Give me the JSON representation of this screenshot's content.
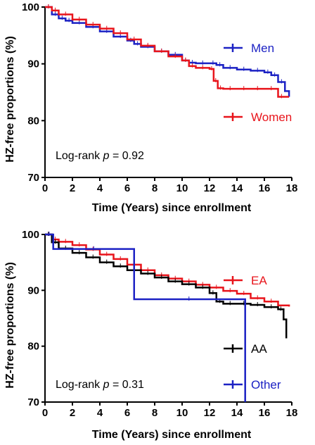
{
  "colors": {
    "red": "#e8141b",
    "blue": "#1c22c4",
    "black": "#000000"
  },
  "chart_data": [
    {
      "type": "line",
      "subtype": "kaplan-meier step",
      "ylabel": "HZ-free proportions (%)",
      "xlabel": "Time (Years) since enrollment",
      "xlim": [
        0,
        18
      ],
      "ylim": [
        70,
        100
      ],
      "xticks": [
        0,
        2,
        4,
        6,
        8,
        10,
        12,
        14,
        16,
        18
      ],
      "yticks": [
        70,
        80,
        90,
        100
      ],
      "annotation": {
        "prefix": "Log-rank ",
        "p": "p",
        "suffix": " = 0.92"
      },
      "legend_placement": "right",
      "series": [
        {
          "name": "Men",
          "color": "#1c22c4",
          "x": [
            0,
            0.5,
            1,
            1.5,
            2,
            3,
            4,
            5,
            6,
            6.5,
            7,
            8,
            9,
            10,
            10.5,
            11,
            12,
            12.5,
            13,
            14,
            15,
            16,
            16.5,
            17,
            17.5,
            17.8
          ],
          "y": [
            100,
            98.7,
            98,
            97.6,
            97.2,
            96.5,
            95.7,
            94.8,
            94.1,
            93.5,
            93,
            92.2,
            91.6,
            90.6,
            90.2,
            90.1,
            90.1,
            89.8,
            89.3,
            89,
            88.8,
            88.5,
            88,
            86.8,
            85.2,
            84.2
          ]
        },
        {
          "name": "Women",
          "color": "#e8141b",
          "x": [
            0,
            0.5,
            1,
            2,
            3,
            4,
            5,
            6,
            7,
            8,
            9,
            10,
            10.5,
            11,
            12,
            12.3,
            12.6,
            13,
            14,
            15,
            16,
            17,
            17.5,
            17.8
          ],
          "y": [
            100,
            99.4,
            98.7,
            97.8,
            96.9,
            96.2,
            95.4,
            94.3,
            93.2,
            92.2,
            91.3,
            90.6,
            89.6,
            89.3,
            89.1,
            87,
            85.7,
            85.6,
            85.6,
            85.6,
            85.6,
            84.2,
            84.2,
            84.2
          ]
        }
      ]
    },
    {
      "type": "line",
      "subtype": "kaplan-meier step",
      "ylabel": "HZ-free proportions (%)",
      "xlabel": "Time (Years) since enrollment",
      "xlim": [
        0,
        18
      ],
      "ylim": [
        70,
        100
      ],
      "xticks": [
        0,
        2,
        4,
        6,
        8,
        10,
        12,
        14,
        16,
        18
      ],
      "yticks": [
        70,
        80,
        90,
        100
      ],
      "annotation": {
        "prefix": "Log-rank ",
        "p": "p",
        "suffix": " = 0.31"
      },
      "legend_placement": "right",
      "series": [
        {
          "name": "EA",
          "color": "#e8141b",
          "x": [
            0,
            0.5,
            1,
            2,
            3,
            4,
            5,
            6,
            7,
            8,
            9,
            10,
            11,
            12,
            13,
            14,
            15,
            16,
            17,
            17.8
          ],
          "y": [
            100,
            99.1,
            98.7,
            98.1,
            97.3,
            96.4,
            95.6,
            94.6,
            93.6,
            92.7,
            92.1,
            91.6,
            91,
            90.5,
            89.9,
            89.4,
            88.6,
            88,
            87.3,
            87.1
          ]
        },
        {
          "name": "AA",
          "color": "#000000",
          "x": [
            0,
            0.5,
            1,
            2,
            3,
            4,
            5,
            6,
            7,
            8,
            9,
            10,
            11,
            12,
            12.5,
            13,
            14,
            15,
            16,
            17,
            17.4,
            17.6
          ],
          "y": [
            100,
            98.6,
            97.5,
            96.7,
            95.9,
            95,
            94.3,
            93.6,
            93,
            92.3,
            91.6,
            91.1,
            90.5,
            89.5,
            88,
            87.6,
            87.6,
            87.4,
            87,
            86.6,
            84.8,
            81.4
          ]
        },
        {
          "name": "Other",
          "color": "#1c22c4",
          "x": [
            0,
            0.6,
            6.5,
            14.5,
            14.6
          ],
          "y": [
            100,
            97.4,
            88.4,
            88.4,
            70
          ]
        }
      ]
    }
  ]
}
